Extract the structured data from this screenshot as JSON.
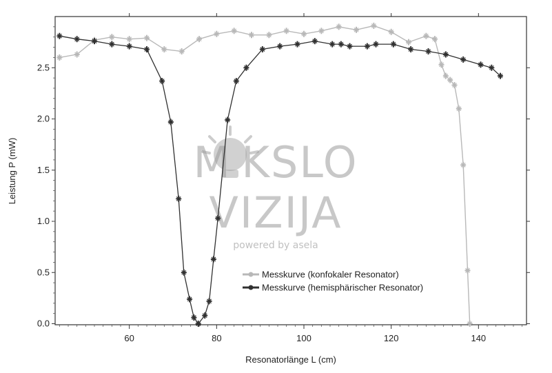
{
  "chart_data": {
    "type": "line",
    "title": "",
    "xlabel": "Resonatorlänge L (cm)",
    "ylabel": "Leistung P (mW)",
    "xlim": [
      43,
      151
    ],
    "ylim": [
      -0.01,
      3.0
    ],
    "x_ticks": [
      60,
      80,
      100,
      120,
      140
    ],
    "y_ticks": [
      0.0,
      0.5,
      1.0,
      1.5,
      2.0,
      2.5
    ],
    "x_tick_labels": [
      "60",
      "80",
      "100",
      "120",
      "140"
    ],
    "y_tick_labels": [
      "0.0",
      "0.5",
      "1.0",
      "1.5",
      "2.0",
      "2.5"
    ],
    "legend_position": "lower-right",
    "grid": false,
    "series": [
      {
        "name": "Messkurve (konfokaler Resonator)",
        "color": "#b8b8b8",
        "x": [
          44,
          48,
          52,
          56,
          60,
          64,
          68,
          72,
          76,
          80,
          84,
          88,
          92,
          96,
          100,
          104,
          108,
          112,
          116,
          120,
          124,
          128,
          130,
          131.5,
          132.5,
          133.5,
          134.5,
          135.5,
          136.5,
          137.5,
          138
        ],
        "y": [
          2.6,
          2.63,
          2.77,
          2.8,
          2.78,
          2.79,
          2.68,
          2.66,
          2.78,
          2.83,
          2.86,
          2.82,
          2.82,
          2.86,
          2.83,
          2.86,
          2.9,
          2.87,
          2.91,
          2.85,
          2.75,
          2.81,
          2.78,
          2.53,
          2.42,
          2.38,
          2.33,
          2.1,
          1.55,
          0.52,
          0.0
        ]
      },
      {
        "name": "Messkurve (hemisphärischer Resonator)",
        "color": "#303030",
        "x": [
          44,
          48,
          52,
          56,
          60,
          64,
          67.5,
          69.5,
          71.3,
          72.5,
          73.8,
          74.8,
          75.8,
          77.3,
          78.3,
          79.3,
          80.3,
          82.5,
          84.5,
          86.8,
          90.5,
          94.5,
          98.5,
          102.5,
          106.5,
          108.5,
          110.5,
          114.5,
          116.5,
          120.5,
          124.5,
          128.5,
          132.5,
          136.5,
          140.5,
          143,
          145
        ],
        "y": [
          2.81,
          2.78,
          2.76,
          2.73,
          2.71,
          2.68,
          2.37,
          1.97,
          1.22,
          0.5,
          0.24,
          0.06,
          0.0,
          0.08,
          0.22,
          0.63,
          1.03,
          1.99,
          2.37,
          2.5,
          2.68,
          2.71,
          2.73,
          2.76,
          2.73,
          2.73,
          2.71,
          2.71,
          2.73,
          2.73,
          2.68,
          2.66,
          2.63,
          2.58,
          2.53,
          2.5,
          2.42
        ]
      }
    ]
  },
  "watermark": {
    "line1": "M KSLO",
    "line2": "VIZIJA",
    "line3": "powered by asela"
  }
}
